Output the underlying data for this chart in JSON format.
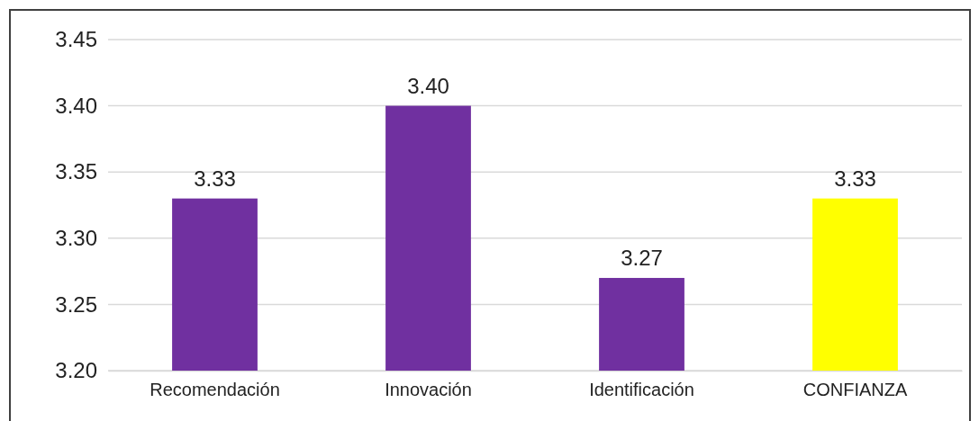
{
  "chart_data": {
    "type": "bar",
    "categories": [
      "Recomendación",
      "Innovación",
      "Identificación",
      "CONFIANZA"
    ],
    "values": [
      3.33,
      3.4,
      3.27,
      3.33
    ],
    "colors": [
      "#7030a0",
      "#7030a0",
      "#7030a0",
      "#ffff00"
    ],
    "value_labels": [
      "3.33",
      "3.40",
      "3.27",
      "3.33"
    ],
    "ylim": [
      3.2,
      3.45
    ],
    "yticks": [
      {
        "value": 3.2,
        "label": "3.20"
      },
      {
        "value": 3.25,
        "label": "3.25"
      },
      {
        "value": 3.3,
        "label": "3.30"
      },
      {
        "value": 3.35,
        "label": "3.35"
      },
      {
        "value": 3.4,
        "label": "3.40"
      },
      {
        "value": 3.45,
        "label": "3.45"
      }
    ],
    "grid": "y"
  }
}
